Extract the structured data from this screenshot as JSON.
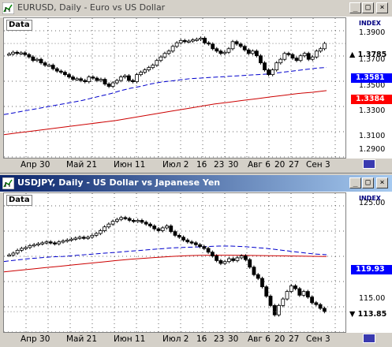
{
  "windows": [
    {
      "id": "eurusd",
      "title": "EURUSD, Daily - Euro vs US Dollar",
      "active": false,
      "data_label": "Data",
      "index_label": "INDEX",
      "y_ticks": [
        "1.3900",
        "1.3700",
        "1.3500",
        "1.3300",
        "1.3100",
        "1.2900"
      ],
      "badges": [
        {
          "text": "1.3785",
          "color": "#ffffff",
          "kind": "current"
        },
        {
          "text": "1.3581",
          "color": "#0000ff",
          "kind": "ma"
        },
        {
          "text": "1.3384",
          "color": "#ff0000",
          "kind": "ma"
        }
      ],
      "x_ticks": [
        "Апр 30",
        "Май 21",
        "Июн 11",
        "Июл 2",
        "16",
        "23",
        "30",
        "Авг 6",
        "20",
        "27",
        "Сен 3"
      ],
      "chart_data": {
        "type": "candlestick",
        "ylim": [
          1.28,
          1.4
        ],
        "close": [
          1.3695,
          1.371,
          1.37,
          1.3705,
          1.369,
          1.367,
          1.364,
          1.365,
          1.362,
          1.36,
          1.36,
          1.357,
          1.355,
          1.354,
          1.352,
          1.35,
          1.348,
          1.3485,
          1.347,
          1.346,
          1.35,
          1.349,
          1.347,
          1.348,
          1.344,
          1.342,
          1.345,
          1.347,
          1.35,
          1.351,
          1.347,
          1.346,
          1.352,
          1.354,
          1.356,
          1.358,
          1.36,
          1.364,
          1.367,
          1.37,
          1.372,
          1.376,
          1.379,
          1.381,
          1.38,
          1.3805,
          1.3815,
          1.382,
          1.383,
          1.379,
          1.378,
          1.374,
          1.372,
          1.37,
          1.371,
          1.374,
          1.38,
          1.378,
          1.376,
          1.373,
          1.37,
          1.372,
          1.368,
          1.362,
          1.356,
          1.352,
          1.356,
          1.362,
          1.365,
          1.37,
          1.369,
          1.366,
          1.364,
          1.368,
          1.37,
          1.365,
          1.367,
          1.372,
          1.374,
          1.3785
        ],
        "ma_blue": [
          1.318,
          1.3195,
          1.321,
          1.3225,
          1.324,
          1.3255,
          1.327,
          1.3285,
          1.33,
          1.332,
          1.334,
          1.336,
          1.3385,
          1.3405,
          1.342,
          1.344,
          1.3455,
          1.3465,
          1.3475,
          1.3485,
          1.349,
          1.3495,
          1.35,
          1.3505,
          1.351,
          1.3515,
          1.352,
          1.3525,
          1.3535,
          1.3545,
          1.3555,
          1.3565,
          1.3575,
          1.3581
        ],
        "ma_red": [
          1.301,
          1.3025,
          1.304,
          1.3055,
          1.307,
          1.3085,
          1.31,
          1.3115,
          1.313,
          1.315,
          1.317,
          1.319,
          1.321,
          1.323,
          1.325,
          1.327,
          1.3285,
          1.33,
          1.3315,
          1.333,
          1.3345,
          1.336,
          1.337,
          1.3384
        ]
      }
    },
    {
      "id": "usdjpy",
      "title": "USDJPY, Daily - US Dollar vs Japanese Yen",
      "active": true,
      "data_label": "Data",
      "index_label": "INDEX",
      "y_ticks": [
        "125.00",
        "115.00"
      ],
      "badges": [
        {
          "text": "119.93",
          "color": "#0000ff",
          "kind": "ma"
        },
        {
          "text": "113.85",
          "color": "#ffffff",
          "kind": "current"
        }
      ],
      "x_ticks": [
        "Апр 30",
        "Май 21",
        "Июн 11",
        "Июл 2",
        "16",
        "23",
        "30",
        "Авг 6",
        "20",
        "27",
        "Сен 3"
      ],
      "chart_data": {
        "type": "candlestick",
        "ylim": [
          111.5,
          126.5
        ],
        "close": [
          119.9,
          120.1,
          120.4,
          120.6,
          120.7,
          120.9,
          121.0,
          121.1,
          121.2,
          121.3,
          121.2,
          121.1,
          121.3,
          121.4,
          121.5,
          121.6,
          121.7,
          121.8,
          121.7,
          121.8,
          122.0,
          122.2,
          122.5,
          122.9,
          123.2,
          123.5,
          123.7,
          123.9,
          123.8,
          123.6,
          123.5,
          123.6,
          123.4,
          123.2,
          123.0,
          122.7,
          122.5,
          122.8,
          123.0,
          122.4,
          122.0,
          121.8,
          121.5,
          121.3,
          121.2,
          121.0,
          120.8,
          120.6,
          120.2,
          119.8,
          119.3,
          119.0,
          119.2,
          119.5,
          119.3,
          119.6,
          119.8,
          119.4,
          118.6,
          117.8,
          117.4,
          116.5,
          115.5,
          114.5,
          113.5,
          114.5,
          115.2,
          116.0,
          116.6,
          116.3,
          115.6,
          116.0,
          115.4,
          114.8,
          114.6,
          114.2,
          113.85
        ],
        "ma_blue": [
          119.2,
          119.35,
          119.5,
          119.6,
          119.7,
          119.75,
          119.85,
          119.95,
          120.05,
          120.15,
          120.25,
          120.35,
          120.45,
          120.55,
          120.65,
          120.7,
          120.75,
          120.8,
          120.85,
          120.85,
          120.8,
          120.7,
          120.6,
          120.45,
          120.3,
          120.15,
          120.0,
          119.93
        ],
        "ma_red": [
          118.1,
          118.25,
          118.4,
          118.55,
          118.7,
          118.85,
          119.0,
          119.15,
          119.3,
          119.45,
          119.55,
          119.65,
          119.75,
          119.82,
          119.86,
          119.88,
          119.88,
          119.86,
          119.84,
          119.82,
          119.8,
          119.78,
          119.76,
          119.74
        ]
      }
    }
  ]
}
